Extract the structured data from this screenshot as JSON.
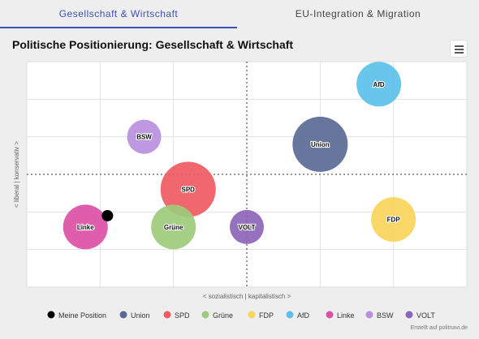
{
  "tabs": [
    {
      "label": "Gesellschaft & Wirtschaft",
      "active": true
    },
    {
      "label": "EU-Integration & Migration",
      "active": false
    }
  ],
  "credit": "Erstellt auf politnavi.de",
  "colors": {
    "tab_active": "#3f51b5"
  },
  "chart_data": {
    "type": "scatter",
    "title": "Politische Positionierung: Gesellschaft & Wirtschaft",
    "xlabel": "< sozialistisch | kapitalistisch >",
    "ylabel": "< liberal | konservativ >",
    "xlim": [
      -3,
      3
    ],
    "ylim": [
      -3,
      3
    ],
    "grid": true,
    "legend_position": "bottom",
    "series": [
      {
        "name": "Meine Position",
        "color": "#000000",
        "x": -1.9,
        "y": -1.1,
        "size": 1,
        "label": ""
      },
      {
        "name": "Union",
        "color": "#5a6a94",
        "x": 1.0,
        "y": 0.8,
        "size": 4,
        "label": "Union"
      },
      {
        "name": "SPD",
        "color": "#ef5b62",
        "x": -0.8,
        "y": -0.4,
        "size": 4,
        "label": "SPD"
      },
      {
        "name": "Grüne",
        "color": "#9ccb7a",
        "x": -1.0,
        "y": -1.4,
        "size": 3,
        "label": "Grüne"
      },
      {
        "name": "FDP",
        "color": "#f8d55a",
        "x": 2.0,
        "y": -1.2,
        "size": 3,
        "label": "FDP"
      },
      {
        "name": "AfD",
        "color": "#5bc1ea",
        "x": 1.8,
        "y": 2.4,
        "size": 3,
        "label": "AfD"
      },
      {
        "name": "Linke",
        "color": "#dc4fa6",
        "x": -2.2,
        "y": -1.4,
        "size": 3,
        "label": "Linke"
      },
      {
        "name": "BSW",
        "color": "#b890e0",
        "x": -1.4,
        "y": 1.0,
        "size": 2,
        "label": "BSW"
      },
      {
        "name": "VOLT",
        "color": "#8d65b8",
        "x": 0.0,
        "y": -1.4,
        "size": 2,
        "label": "VOLT"
      }
    ]
  }
}
